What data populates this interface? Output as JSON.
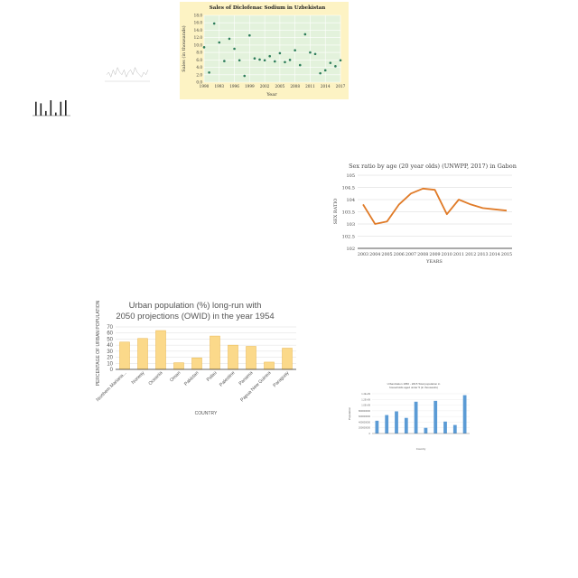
{
  "charts": {
    "sales": {
      "type": "scatter",
      "title": "Sales of Diclofenac Sodium in Uzbekistan",
      "xlabel": "Year",
      "ylabel": "Sales (in thousands)",
      "x": [
        1990,
        1991,
        1992,
        1993,
        1994,
        1995,
        1996,
        1997,
        1998,
        1999,
        2000,
        2001,
        2002,
        2003,
        2004,
        2005,
        2006,
        2007,
        2008,
        2009,
        2010,
        2011,
        2012,
        2013,
        2014,
        2015,
        2016,
        2017
      ],
      "y": [
        9.4,
        2.6,
        15.8,
        10.7,
        5.7,
        11.7,
        9.0,
        5.9,
        1.7,
        12.6,
        6.4,
        6.1,
        5.9,
        7.0,
        5.6,
        7.8,
        5.4,
        6.0,
        8.6,
        4.6,
        12.9,
        8.0,
        7.6,
        2.4,
        3.2,
        5.2,
        4.3,
        5.9
      ],
      "xticks": [
        "1990",
        "1993",
        "1996",
        "1999",
        "2002",
        "2005",
        "2008",
        "2011",
        "2014",
        "2017"
      ],
      "yticks": [
        "0.0",
        "2.0",
        "4.0",
        "6.0",
        "8.0",
        "10.0",
        "12.0",
        "14.0",
        "16.0",
        "18.0"
      ],
      "xlim": [
        1990,
        2017
      ],
      "ylim": [
        0,
        18
      ],
      "colors": {
        "point": "#2e7d5b",
        "plot_bg": "#e3f2dc",
        "frame_bg": "#fdf3c4"
      }
    },
    "sexratio": {
      "type": "line",
      "title": "Sex ratio by age (20 year olds) (UNWPP, 2017) in Gabon",
      "xlabel": "YEARS",
      "ylabel": "SEX RATIO",
      "x": [
        2003,
        2004,
        2005,
        2006,
        2007,
        2008,
        2009,
        2010,
        2011,
        2012,
        2013,
        2014,
        2015
      ],
      "y": [
        103.8,
        103.0,
        103.1,
        103.8,
        104.25,
        104.45,
        104.4,
        103.4,
        104.0,
        103.8,
        103.65,
        103.6,
        103.55
      ],
      "xticks": [
        "2003",
        "2004",
        "2005",
        "2006",
        "2007",
        "2008",
        "2009",
        "2010",
        "2011",
        "2012",
        "2013",
        "2014",
        "2015"
      ],
      "yticks": [
        "102",
        "102.5",
        "103",
        "103.5",
        "104",
        "104.5",
        "105"
      ],
      "ylim": [
        102,
        105
      ],
      "colors": {
        "line": "#e07b28"
      }
    },
    "urban": {
      "type": "bar",
      "title": "Urban population (%) long-run with 2050 projections (OWID) in the year 1954",
      "xlabel": "COUNTRY",
      "ylabel": "PERCENTAGE OF URBAN POPULATION",
      "categories": [
        "Northern Mariana...",
        "Norway",
        "Oceania",
        "Oman",
        "Pakistan",
        "Palau",
        "Palestine",
        "Panama",
        "Papua New Guinea",
        "Paraguay"
      ],
      "values": [
        45,
        51,
        64,
        11,
        19,
        55,
        40,
        38,
        12,
        35
      ],
      "yticks": [
        "0",
        "10",
        "20",
        "30",
        "40",
        "50",
        "60",
        "70"
      ],
      "ylim": [
        0,
        70
      ],
      "colors": {
        "fill": "#fbd98a",
        "stroke": "#e9b64d"
      }
    },
    "tiny_line": {
      "type": "line",
      "title": "",
      "x": [
        1,
        2,
        3,
        4,
        5,
        6,
        7,
        8,
        9,
        10,
        11,
        12,
        13,
        14,
        15,
        16,
        17,
        18,
        19,
        20
      ],
      "y": [
        5,
        6,
        4,
        7,
        5,
        8,
        6,
        5,
        7,
        4,
        6,
        7,
        5,
        8,
        6,
        5,
        4,
        6,
        5,
        7
      ],
      "colors": {
        "line": "#bbbbbb"
      }
    },
    "tiny_bar": {
      "type": "bar",
      "title": "",
      "categories": [
        "",
        "",
        "",
        "",
        "",
        "",
        ""
      ],
      "values": [
        9,
        8,
        3,
        10,
        2,
        9,
        10
      ],
      "colors": {
        "fill": "#222222"
      }
    },
    "small_bar": {
      "type": "bar",
      "title": "Urbanization 1950 - 2015 Total population in households aged under 5 (in thousands)",
      "xlabel": "Country",
      "ylabel": "Population",
      "categories": [
        "",
        "",
        "",
        "",
        "",
        "",
        "",
        "",
        "",
        ""
      ],
      "values": [
        0.45,
        0.65,
        0.78,
        0.55,
        1.12,
        0.2,
        1.15,
        0.42,
        0.3,
        1.35
      ],
      "yticks": [
        "0",
        "200000000",
        "400000000",
        "600000000",
        "800000000",
        "1.0E+09",
        "1.2E+09",
        "1.4E+09"
      ],
      "ylim": [
        0,
        1.4
      ],
      "colors": {
        "fill": "#5b9bd5"
      }
    }
  }
}
